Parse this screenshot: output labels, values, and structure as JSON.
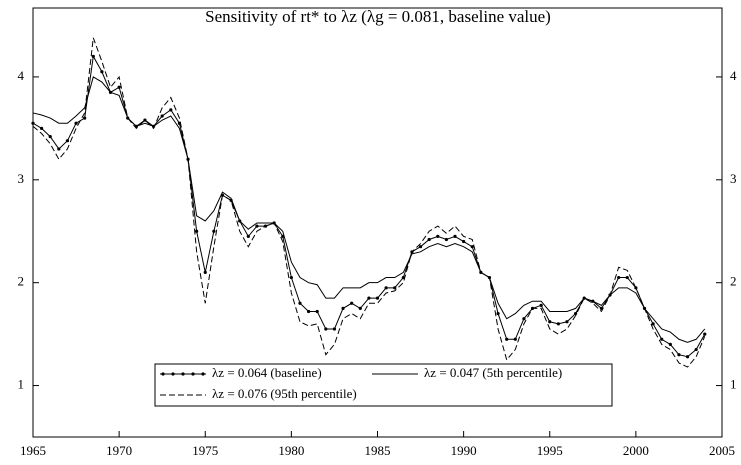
{
  "chart_data": {
    "type": "line",
    "title": "Sensitivity of rt* to λz (λg = 0.081, baseline value)",
    "x": [
      1965,
      1965.5,
      1966,
      1966.5,
      1967,
      1967.5,
      1968,
      1968.5,
      1969,
      1969.5,
      1970,
      1970.5,
      1971,
      1971.5,
      1972,
      1972.5,
      1973,
      1973.5,
      1974,
      1974.5,
      1975,
      1975.5,
      1976,
      1976.5,
      1977,
      1977.5,
      1978,
      1978.5,
      1979,
      1979.5,
      1980,
      1980.5,
      1981,
      1981.5,
      1982,
      1982.5,
      1983,
      1983.5,
      1984,
      1984.5,
      1985,
      1985.5,
      1986,
      1986.5,
      1987,
      1987.5,
      1988,
      1988.5,
      1989,
      1989.5,
      1990,
      1990.5,
      1991,
      1991.5,
      1992,
      1992.5,
      1993,
      1993.5,
      1994,
      1994.5,
      1995,
      1995.5,
      1996,
      1996.5,
      1997,
      1997.5,
      1998,
      1998.5,
      1999,
      1999.5,
      2000,
      2000.5,
      2001,
      2001.5,
      2002,
      2002.5,
      2003,
      2003.5,
      2004
    ],
    "series": [
      {
        "name": "λz = 0.064 (baseline)",
        "color": "#000000",
        "style": "solid",
        "markers": true,
        "values": [
          3.55,
          3.5,
          3.42,
          3.3,
          3.38,
          3.55,
          3.6,
          4.2,
          4.05,
          3.85,
          3.9,
          3.6,
          3.52,
          3.58,
          3.52,
          3.62,
          3.68,
          3.55,
          3.2,
          2.5,
          2.1,
          2.5,
          2.85,
          2.8,
          2.6,
          2.45,
          2.55,
          2.55,
          2.58,
          2.45,
          2.05,
          1.8,
          1.72,
          1.72,
          1.55,
          1.55,
          1.75,
          1.8,
          1.75,
          1.85,
          1.85,
          1.95,
          1.95,
          2.05,
          2.3,
          2.35,
          2.42,
          2.45,
          2.42,
          2.45,
          2.4,
          2.35,
          2.1,
          2.05,
          1.7,
          1.45,
          1.45,
          1.65,
          1.75,
          1.78,
          1.62,
          1.6,
          1.62,
          1.7,
          1.85,
          1.82,
          1.75,
          1.88,
          2.05,
          2.05,
          1.95,
          1.75,
          1.6,
          1.45,
          1.4,
          1.3,
          1.28,
          1.35,
          1.5
        ]
      },
      {
        "name": "λz = 0.047 (5th percentile)",
        "color": "#000000",
        "style": "solid",
        "markers": false,
        "values": [
          3.65,
          3.63,
          3.6,
          3.55,
          3.55,
          3.62,
          3.7,
          4.0,
          3.95,
          3.85,
          3.82,
          3.6,
          3.52,
          3.55,
          3.52,
          3.58,
          3.62,
          3.5,
          3.2,
          2.65,
          2.6,
          2.7,
          2.88,
          2.82,
          2.6,
          2.52,
          2.58,
          2.58,
          2.58,
          2.5,
          2.2,
          2.05,
          2.0,
          1.98,
          1.85,
          1.85,
          1.95,
          1.95,
          1.95,
          2.0,
          2.0,
          2.05,
          2.05,
          2.1,
          2.28,
          2.3,
          2.35,
          2.38,
          2.35,
          2.38,
          2.35,
          2.3,
          2.1,
          2.05,
          1.8,
          1.65,
          1.7,
          1.78,
          1.82,
          1.82,
          1.72,
          1.72,
          1.72,
          1.75,
          1.85,
          1.82,
          1.78,
          1.88,
          1.95,
          1.95,
          1.9,
          1.75,
          1.65,
          1.55,
          1.52,
          1.45,
          1.42,
          1.45,
          1.55
        ]
      },
      {
        "name": "λz = 0.076 (95th percentile)",
        "color": "#000000",
        "style": "dashed",
        "markers": false,
        "values": [
          3.52,
          3.45,
          3.35,
          3.2,
          3.3,
          3.5,
          3.65,
          4.38,
          4.15,
          3.9,
          4.0,
          3.6,
          3.5,
          3.58,
          3.5,
          3.7,
          3.8,
          3.6,
          3.2,
          2.3,
          1.8,
          2.35,
          2.85,
          2.8,
          2.5,
          2.35,
          2.5,
          2.55,
          2.58,
          2.4,
          1.9,
          1.62,
          1.58,
          1.6,
          1.3,
          1.4,
          1.65,
          1.7,
          1.65,
          1.8,
          1.8,
          1.9,
          1.92,
          2.0,
          2.3,
          2.38,
          2.5,
          2.55,
          2.48,
          2.55,
          2.45,
          2.42,
          2.1,
          2.05,
          1.55,
          1.25,
          1.35,
          1.6,
          1.75,
          1.75,
          1.55,
          1.5,
          1.55,
          1.68,
          1.85,
          1.8,
          1.72,
          1.88,
          2.15,
          2.12,
          1.95,
          1.75,
          1.55,
          1.4,
          1.35,
          1.22,
          1.18,
          1.28,
          1.48
        ]
      }
    ],
    "xlim": [
      1965,
      2005
    ],
    "xticks": [
      1965,
      1970,
      1975,
      1980,
      1985,
      1990,
      1995,
      2000,
      2005
    ],
    "ylim": [
      0.5,
      4.67
    ],
    "yticks": [
      1,
      2,
      3,
      4
    ],
    "mirror_y_axis": true,
    "grid": false,
    "legend": "lower center"
  }
}
